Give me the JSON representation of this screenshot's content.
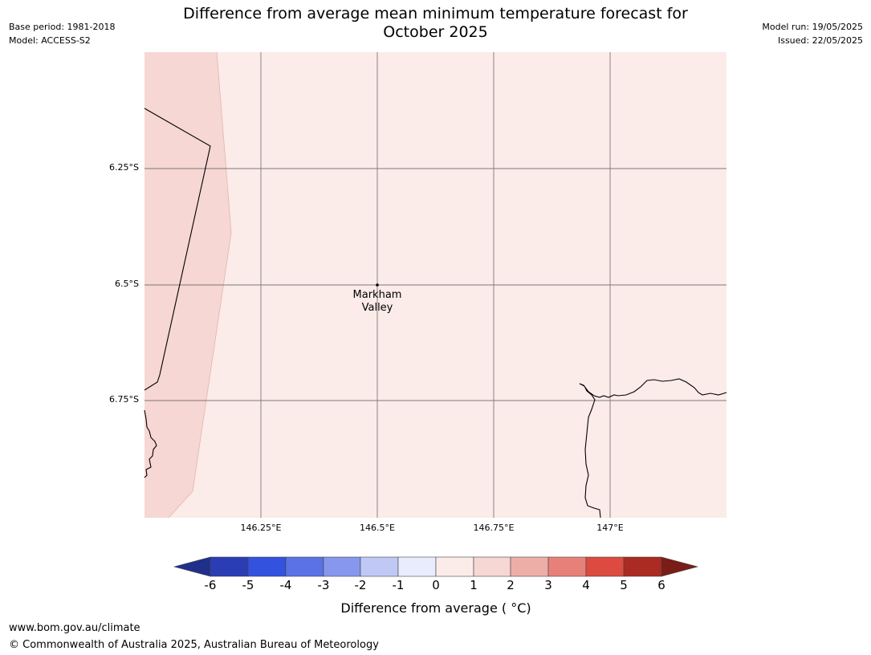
{
  "header": {
    "base_period": "Base period: 1981-2018",
    "model": "Model: ACCESS-S2",
    "title_line1": "Difference from average mean minimum temperature forecast for",
    "title_line2": "October 2025",
    "model_run": "Model run: 19/05/2025",
    "issued": "Issued: 22/05/2025"
  },
  "map": {
    "lat_labels": [
      "6.25°S",
      "6.5°S",
      "6.75°S"
    ],
    "lon_labels": [
      "146.25°E",
      "146.5°E",
      "146.75°E",
      "147°E"
    ],
    "place": {
      "name_line1": "Markham",
      "name_line2": "Valley"
    },
    "colors": {
      "anomaly_0_1": "#fbebe9",
      "anomaly_1_2": "#f6d7d3",
      "coastline": "#000000",
      "gridline": "#555555"
    }
  },
  "colorbar": {
    "ticks": [
      "-6",
      "-5",
      "-4",
      "-3",
      "-2",
      "-1",
      "0",
      "1",
      "2",
      "3",
      "4",
      "5",
      "6"
    ],
    "colors": [
      "#1f2f8a",
      "#2a3db5",
      "#3352e0",
      "#5a72e6",
      "#8797ee",
      "#c0c8f5",
      "#e9ecfc",
      "#fbebe9",
      "#f6d7d3",
      "#eeaea8",
      "#e8807a",
      "#dc4a40",
      "#ab2a22",
      "#7a1c17"
    ],
    "label": "Difference from average ( °C)"
  },
  "footer": {
    "url": "www.bom.gov.au/climate",
    "copyright": "© Commonwealth of Australia 2025, Australian Bureau of Meteorology"
  }
}
